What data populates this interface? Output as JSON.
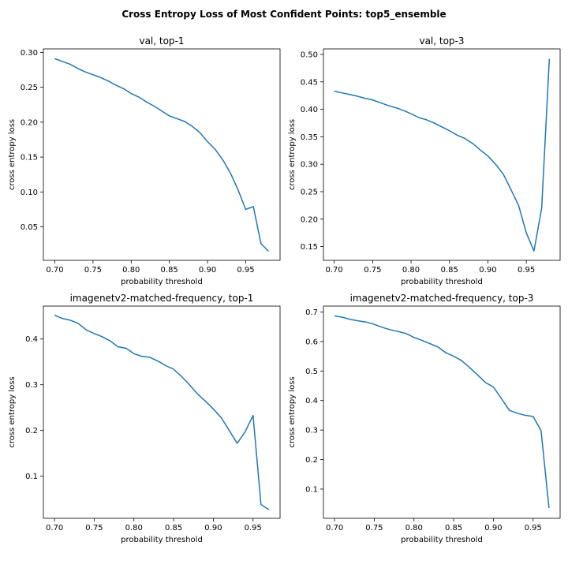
{
  "figure": {
    "title": "Cross Entropy Loss of Most Confident Points: top5_ensemble"
  },
  "chart_data": [
    {
      "type": "line",
      "title": "val, top-1",
      "xlabel": "probability threshold",
      "ylabel": "cross entropy loss",
      "xlim": [
        0.685,
        0.995
      ],
      "ylim": [
        0.002,
        0.305
      ],
      "xticks": [
        0.7,
        0.75,
        0.8,
        0.85,
        0.9,
        0.95
      ],
      "xtick_labels": [
        "0.70",
        "0.75",
        "0.80",
        "0.85",
        "0.90",
        "0.95"
      ],
      "yticks": [
        0.05,
        0.1,
        0.15,
        0.2,
        0.25,
        0.3
      ],
      "ytick_labels": [
        "0.05",
        "0.10",
        "0.15",
        "0.20",
        "0.25",
        "0.30"
      ],
      "color": "#1f77b4",
      "x": [
        0.7,
        0.71,
        0.72,
        0.73,
        0.74,
        0.75,
        0.76,
        0.77,
        0.78,
        0.79,
        0.8,
        0.81,
        0.82,
        0.83,
        0.84,
        0.85,
        0.86,
        0.87,
        0.88,
        0.89,
        0.9,
        0.91,
        0.92,
        0.93,
        0.94,
        0.95,
        0.96,
        0.97,
        0.98
      ],
      "y": [
        0.291,
        0.287,
        0.283,
        0.277,
        0.272,
        0.268,
        0.264,
        0.259,
        0.253,
        0.248,
        0.241,
        0.236,
        0.229,
        0.223,
        0.216,
        0.209,
        0.205,
        0.201,
        0.194,
        0.185,
        0.172,
        0.161,
        0.146,
        0.127,
        0.103,
        0.075,
        0.079,
        0.026,
        0.015
      ]
    },
    {
      "type": "line",
      "title": "val, top-3",
      "xlabel": "probability threshold",
      "ylabel": "cross entropy loss",
      "xlim": [
        0.686,
        0.994
      ],
      "ylim": [
        0.125,
        0.51
      ],
      "xticks": [
        0.7,
        0.75,
        0.8,
        0.85,
        0.9,
        0.95
      ],
      "xtick_labels": [
        "0.70",
        "0.75",
        "0.80",
        "0.85",
        "0.90",
        "0.95"
      ],
      "yticks": [
        0.15,
        0.2,
        0.25,
        0.3,
        0.35,
        0.4,
        0.45,
        0.5
      ],
      "ytick_labels": [
        "0.15",
        "0.20",
        "0.25",
        "0.30",
        "0.35",
        "0.40",
        "0.45",
        "0.50"
      ],
      "color": "#1f77b4",
      "x": [
        0.7,
        0.71,
        0.72,
        0.73,
        0.74,
        0.75,
        0.76,
        0.77,
        0.78,
        0.79,
        0.8,
        0.81,
        0.82,
        0.83,
        0.84,
        0.85,
        0.86,
        0.87,
        0.88,
        0.89,
        0.9,
        0.91,
        0.92,
        0.93,
        0.94,
        0.95,
        0.96,
        0.97,
        0.98
      ],
      "y": [
        0.433,
        0.43,
        0.427,
        0.424,
        0.42,
        0.417,
        0.412,
        0.407,
        0.403,
        0.398,
        0.392,
        0.385,
        0.381,
        0.375,
        0.368,
        0.361,
        0.353,
        0.347,
        0.338,
        0.326,
        0.315,
        0.3,
        0.282,
        0.254,
        0.225,
        0.175,
        0.142,
        0.22,
        0.492
      ]
    },
    {
      "type": "line",
      "title": "imagenetv2-matched-frequency, top-1",
      "xlabel": "probability threshold",
      "ylabel": "cross entropy loss",
      "xlim": [
        0.686,
        0.984
      ],
      "ylim": [
        0.008,
        0.472
      ],
      "xticks": [
        0.7,
        0.75,
        0.8,
        0.85,
        0.9,
        0.95
      ],
      "xtick_labels": [
        "0.70",
        "0.75",
        "0.80",
        "0.85",
        "0.90",
        "0.95"
      ],
      "yticks": [
        0.1,
        0.2,
        0.3,
        0.4
      ],
      "ytick_labels": [
        "0.1",
        "0.2",
        "0.3",
        "0.4"
      ],
      "color": "#1f77b4",
      "x": [
        0.7,
        0.71,
        0.72,
        0.73,
        0.74,
        0.75,
        0.76,
        0.77,
        0.78,
        0.79,
        0.8,
        0.81,
        0.82,
        0.83,
        0.84,
        0.85,
        0.86,
        0.87,
        0.88,
        0.89,
        0.9,
        0.91,
        0.92,
        0.93,
        0.94,
        0.95,
        0.96,
        0.97
      ],
      "y": [
        0.452,
        0.445,
        0.441,
        0.434,
        0.42,
        0.412,
        0.405,
        0.396,
        0.383,
        0.38,
        0.368,
        0.362,
        0.36,
        0.352,
        0.342,
        0.334,
        0.318,
        0.3,
        0.28,
        0.264,
        0.247,
        0.228,
        0.2,
        0.172,
        0.197,
        0.233,
        0.038,
        0.027
      ]
    },
    {
      "type": "line",
      "title": "imagenetv2-matched-frequency, top-3",
      "xlabel": "probability threshold",
      "ylabel": "cross entropy loss",
      "xlim": [
        0.686,
        0.984
      ],
      "ylim": [
        0.001,
        0.72
      ],
      "xticks": [
        0.7,
        0.75,
        0.8,
        0.85,
        0.9,
        0.95
      ],
      "xtick_labels": [
        "0.70",
        "0.75",
        "0.80",
        "0.85",
        "0.90",
        "0.95"
      ],
      "yticks": [
        0.1,
        0.2,
        0.3,
        0.4,
        0.5,
        0.6,
        0.7
      ],
      "ytick_labels": [
        "0.1",
        "0.2",
        "0.3",
        "0.4",
        "0.5",
        "0.6",
        "0.7"
      ],
      "color": "#1f77b4",
      "x": [
        0.7,
        0.71,
        0.72,
        0.73,
        0.74,
        0.75,
        0.76,
        0.77,
        0.78,
        0.79,
        0.8,
        0.81,
        0.82,
        0.83,
        0.84,
        0.85,
        0.86,
        0.87,
        0.88,
        0.89,
        0.9,
        0.91,
        0.92,
        0.93,
        0.94,
        0.95,
        0.96,
        0.97
      ],
      "y": [
        0.687,
        0.682,
        0.675,
        0.67,
        0.666,
        0.658,
        0.648,
        0.64,
        0.634,
        0.627,
        0.614,
        0.604,
        0.593,
        0.582,
        0.562,
        0.55,
        0.535,
        0.512,
        0.487,
        0.461,
        0.446,
        0.407,
        0.367,
        0.357,
        0.35,
        0.346,
        0.298,
        0.036
      ]
    }
  ]
}
